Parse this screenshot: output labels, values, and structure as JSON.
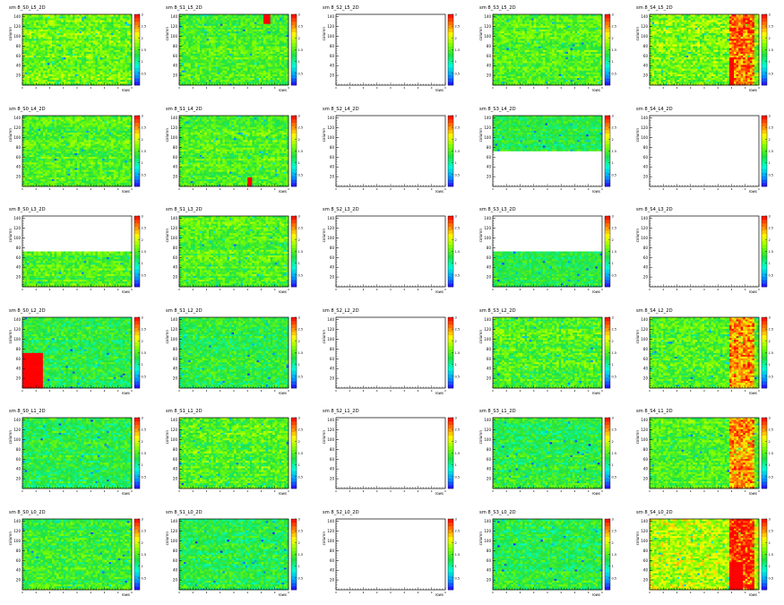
{
  "layout": {
    "rows": 6,
    "cols": 5
  },
  "colormap": {
    "stops": [
      "#2a00ff",
      "#00a0ff",
      "#00ffd0",
      "#20e040",
      "#80ff00",
      "#ffff00",
      "#ff8000",
      "#ff0000"
    ],
    "ticks": [
      "0.5",
      "1",
      "1.5",
      "2",
      "2.5",
      "3"
    ]
  },
  "axes": {
    "ylabel": "column",
    "xlabel": "rows",
    "yticks": [
      "20",
      "40",
      "60",
      "80",
      "100",
      "120",
      "140"
    ],
    "ylim": [
      0,
      145
    ]
  },
  "chart_data": [
    {
      "type": "heatmap",
      "title": "sm 8_S0_L5_2D",
      "fill": "full",
      "level": 1.6,
      "noise": 0.35,
      "right_hot": false,
      "blocks": []
    },
    {
      "type": "heatmap",
      "title": "sm 8_S1_L5_2D",
      "fill": "full",
      "level": 1.5,
      "noise": 0.3,
      "right_hot": false,
      "blocks": [
        {
          "x": [
            0.77,
            0.83
          ],
          "y": [
            0.87,
            1.0
          ],
          "v": 3
        }
      ]
    },
    {
      "type": "heatmap",
      "title": "sm 8_S2_L5_2D",
      "fill": "empty"
    },
    {
      "type": "heatmap",
      "title": "sm 8_S3_L5_2D",
      "fill": "full",
      "level": 1.5,
      "noise": 0.3,
      "right_hot": false,
      "blocks": []
    },
    {
      "type": "heatmap",
      "title": "sm 8_S4_L5_2D",
      "fill": "full",
      "level": 1.7,
      "noise": 0.4,
      "right_hot": true,
      "blocks": [
        {
          "x": [
            0.72,
            0.78
          ],
          "y": [
            0.0,
            0.38
          ],
          "v": 3
        }
      ]
    },
    {
      "type": "heatmap",
      "title": "sm 8_S0_L4_2D",
      "fill": "full",
      "level": 1.5,
      "noise": 0.3,
      "right_hot": false,
      "blocks": []
    },
    {
      "type": "heatmap",
      "title": "sm 8_S1_L4_2D",
      "fill": "full",
      "level": 1.5,
      "noise": 0.3,
      "right_hot": false,
      "blocks": [
        {
          "x": [
            0.62,
            0.67
          ],
          "y": [
            0.0,
            0.13
          ],
          "v": 3
        }
      ]
    },
    {
      "type": "heatmap",
      "title": "sm 8_S2_L4_2D",
      "fill": "empty"
    },
    {
      "type": "heatmap",
      "title": "sm 8_S3_L4_2D",
      "fill": "top",
      "frac": 0.5,
      "level": 1.3,
      "noise": 0.25,
      "right_hot": false,
      "blocks": []
    },
    {
      "type": "heatmap",
      "title": "sm 8_S4_L4_2D",
      "fill": "empty"
    },
    {
      "type": "heatmap",
      "title": "sm 8_S0_L3_2D",
      "fill": "bottom",
      "frac": 0.5,
      "level": 1.5,
      "noise": 0.3,
      "right_hot": false,
      "blocks": []
    },
    {
      "type": "heatmap",
      "title": "sm 8_S1_L3_2D",
      "fill": "full",
      "level": 1.5,
      "noise": 0.3,
      "right_hot": false,
      "blocks": []
    },
    {
      "type": "heatmap",
      "title": "sm 8_S2_L3_2D",
      "fill": "empty"
    },
    {
      "type": "heatmap",
      "title": "sm 8_S3_L3_2D",
      "fill": "bottom",
      "frac": 0.5,
      "level": 1.3,
      "noise": 0.25,
      "right_hot": false,
      "blocks": []
    },
    {
      "type": "heatmap",
      "title": "sm 8_S4_L3_2D",
      "fill": "empty"
    },
    {
      "type": "heatmap",
      "title": "sm 8_S0_L2_2D",
      "fill": "full",
      "level": 1.3,
      "noise": 0.3,
      "right_hot": false,
      "blocks": [
        {
          "x": [
            0.0,
            0.18
          ],
          "y": [
            0.0,
            0.5
          ],
          "v": 3
        }
      ]
    },
    {
      "type": "heatmap",
      "title": "sm 8_S1_L2_2D",
      "fill": "full",
      "level": 1.3,
      "noise": 0.3,
      "right_hot": false,
      "blocks": []
    },
    {
      "type": "heatmap",
      "title": "sm 8_S2_L2_2D",
      "fill": "empty"
    },
    {
      "type": "heatmap",
      "title": "sm 8_S3_L2_2D",
      "fill": "full",
      "level": 1.5,
      "noise": 0.35,
      "right_hot": false,
      "blocks": []
    },
    {
      "type": "heatmap",
      "title": "sm 8_S4_L2_2D",
      "fill": "full",
      "level": 1.5,
      "noise": 0.35,
      "right_hot": true,
      "blocks": []
    },
    {
      "type": "heatmap",
      "title": "sm 8_S0_L1_2D",
      "fill": "full",
      "level": 1.3,
      "noise": 0.3,
      "right_hot": false,
      "blocks": []
    },
    {
      "type": "heatmap",
      "title": "sm 8_S1_L1_2D",
      "fill": "full",
      "level": 1.5,
      "noise": 0.35,
      "right_hot": false,
      "blocks": []
    },
    {
      "type": "heatmap",
      "title": "sm 8_S2_L1_2D",
      "fill": "empty"
    },
    {
      "type": "heatmap",
      "title": "sm 8_S3_L1_2D",
      "fill": "full",
      "level": 1.3,
      "noise": 0.3,
      "right_hot": false,
      "blocks": []
    },
    {
      "type": "heatmap",
      "title": "sm 8_S4_L1_2D",
      "fill": "full",
      "level": 1.5,
      "noise": 0.3,
      "right_hot": true,
      "blocks": []
    },
    {
      "type": "heatmap",
      "title": "sm 8_S0_L0_2D",
      "fill": "full",
      "level": 1.4,
      "noise": 0.3,
      "right_hot": false,
      "blocks": []
    },
    {
      "type": "heatmap",
      "title": "sm 8_S1_L0_2D",
      "fill": "full",
      "level": 1.3,
      "noise": 0.3,
      "right_hot": false,
      "blocks": []
    },
    {
      "type": "heatmap",
      "title": "sm 8_S2_L0_2D",
      "fill": "empty"
    },
    {
      "type": "heatmap",
      "title": "sm 8_S3_L0_2D",
      "fill": "full",
      "level": 1.3,
      "noise": 0.3,
      "right_hot": false,
      "blocks": []
    },
    {
      "type": "heatmap",
      "title": "sm 8_S4_L0_2D",
      "fill": "full",
      "level": 1.9,
      "noise": 0.45,
      "right_hot": true,
      "blocks": [
        {
          "x": [
            0.72,
            0.86
          ],
          "y": [
            0.0,
            0.4
          ],
          "v": 3
        }
      ]
    }
  ]
}
